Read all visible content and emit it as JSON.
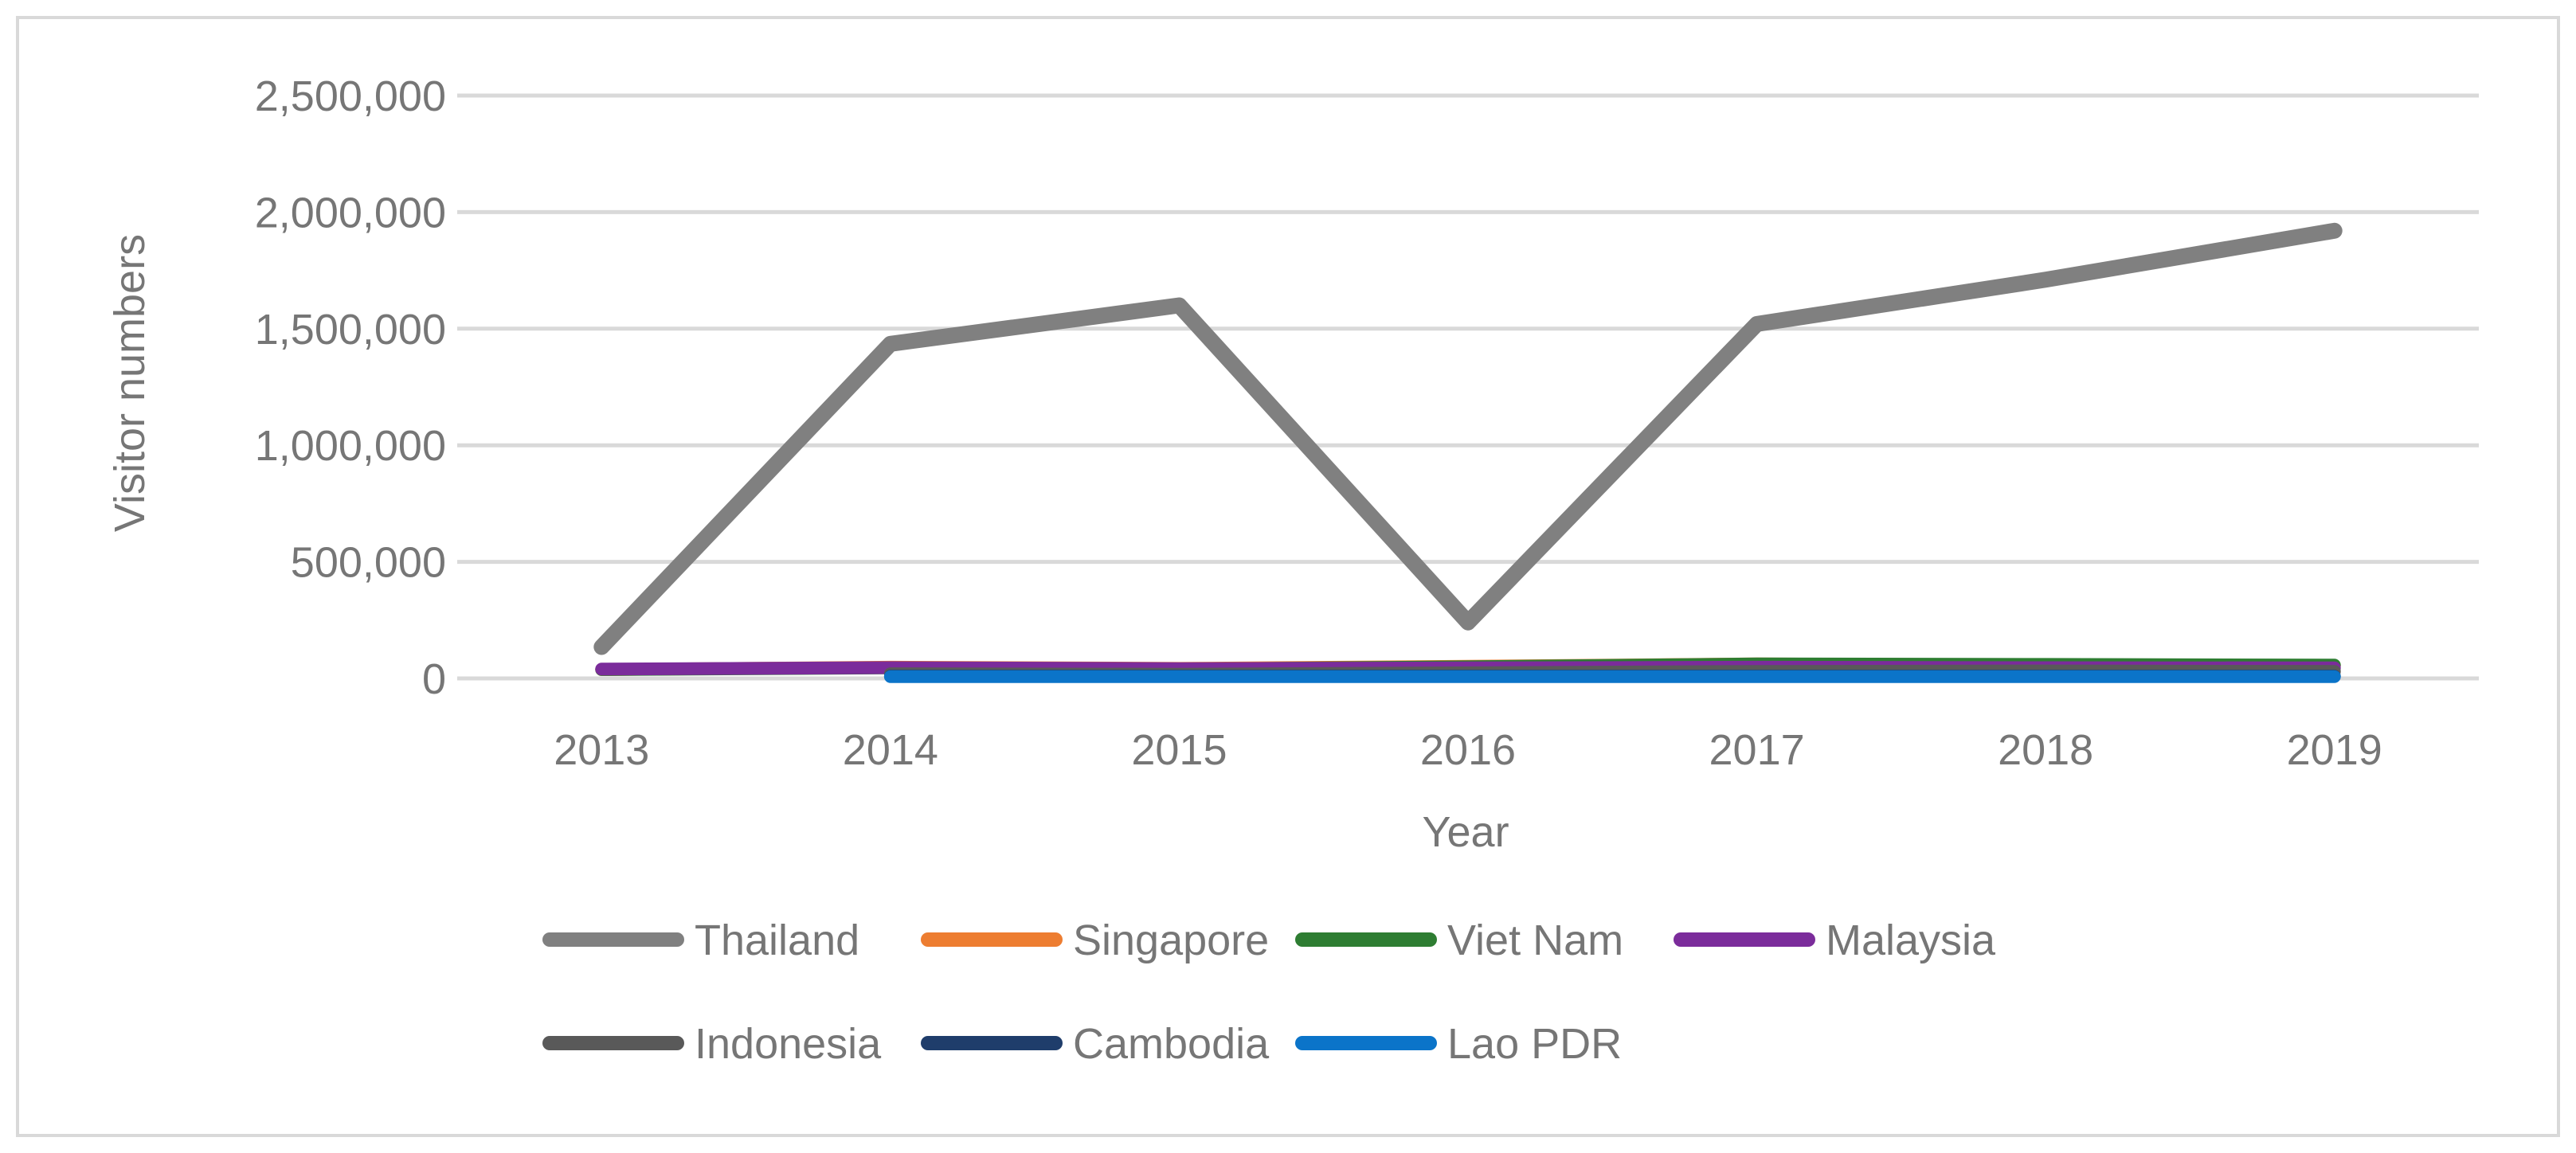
{
  "chart_data": {
    "type": "line",
    "xlabel": "Year",
    "ylabel": "Visitor numbers",
    "categories": [
      "2013",
      "2014",
      "2015",
      "2016",
      "2017",
      "2018",
      "2019"
    ],
    "ylim": [
      0,
      2500000
    ],
    "yticks": [
      0,
      500000,
      1000000,
      1500000,
      2000000,
      2500000
    ],
    "ytick_labels": [
      "0",
      "500,000",
      "1,000,000",
      "1,500,000",
      "2,000,000",
      "2,500,000"
    ],
    "grid": "horizontal",
    "legend_position": "bottom",
    "series": [
      {
        "name": "Thailand",
        "color": "#808080",
        "values": [
          135000,
          1435000,
          1600000,
          240000,
          1520000,
          1710000,
          1920000
        ]
      },
      {
        "name": "Singapore",
        "color": "#ED7D31",
        "values": [
          38000,
          48000,
          43000,
          52000,
          62000,
          58000,
          55000
        ]
      },
      {
        "name": "Viet Nam",
        "color": "#2E7D32",
        "values": [
          38000,
          45000,
          40000,
          50000,
          62000,
          60000,
          57000
        ]
      },
      {
        "name": "Malaysia",
        "color": "#7B2C9B",
        "values": [
          40000,
          46000,
          42000,
          45000,
          48000,
          46000,
          45000
        ]
      },
      {
        "name": "Indonesia",
        "color": "#595959",
        "values": [
          null,
          20000,
          18000,
          null,
          30000,
          32000,
          30000
        ]
      },
      {
        "name": "Cambodia",
        "color": "#1F3D6B",
        "values": [
          null,
          10000,
          10000,
          null,
          10000,
          10000,
          10000
        ]
      },
      {
        "name": "Lao PDR",
        "color": "#0B74C9",
        "values": [
          null,
          8000,
          8000,
          null,
          8000,
          8000,
          8000
        ]
      }
    ]
  }
}
